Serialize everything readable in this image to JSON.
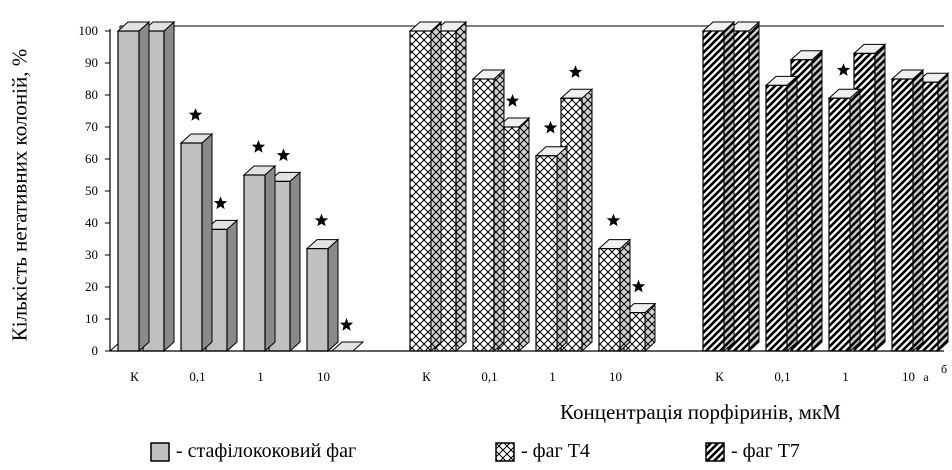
{
  "chart_data": {
    "type": "bar",
    "ylabel": "Кількість негативних колоній, %",
    "xlabel": "Концентрація порфіринів, мкМ",
    "ylim": [
      0,
      100
    ],
    "yticks": [
      0,
      10,
      20,
      30,
      40,
      50,
      60,
      70,
      80,
      90,
      100
    ],
    "grid": false,
    "legend_position": "bottom",
    "bar_pair_labels": [
      "а",
      "б"
    ],
    "groups": [
      {
        "series": "стафілококовий фаг",
        "pattern": "solid-gray",
        "categories": [
          "К",
          "0,1",
          "1",
          "10"
        ],
        "a": [
          100,
          65,
          55,
          32
        ],
        "b": [
          100,
          38,
          53,
          0
        ],
        "star_a": [
          false,
          true,
          true,
          true
        ],
        "star_b": [
          false,
          true,
          true,
          true
        ]
      },
      {
        "series": "фаг Т4",
        "pattern": "crosshatch",
        "categories": [
          "К",
          "0,1",
          "1",
          "10"
        ],
        "a": [
          100,
          85,
          61,
          32
        ],
        "b": [
          100,
          70,
          79,
          12
        ],
        "star_a": [
          false,
          false,
          true,
          true
        ],
        "star_b": [
          false,
          true,
          true,
          true
        ]
      },
      {
        "series": "фаг Т7",
        "pattern": "diagonal",
        "categories": [
          "К",
          "0,1",
          "1",
          "10"
        ],
        "a": [
          100,
          83,
          79,
          85
        ],
        "b": [
          100,
          91,
          93,
          84
        ],
        "star_a": [
          false,
          false,
          true,
          false
        ],
        "star_b": [
          false,
          false,
          false,
          false
        ]
      }
    ]
  },
  "legend": [
    {
      "label": "- стафілококовий фаг",
      "pattern": "solid-gray"
    },
    {
      "label": "- фаг Т4",
      "pattern": "crosshatch"
    },
    {
      "label": "- фаг Т7",
      "pattern": "diagonal"
    }
  ],
  "colors": {
    "bar_fill": "#c0c0c0",
    "bar_side": "#8a8a8a",
    "bar_top": "#e2e2e2",
    "ink": "#000000"
  }
}
